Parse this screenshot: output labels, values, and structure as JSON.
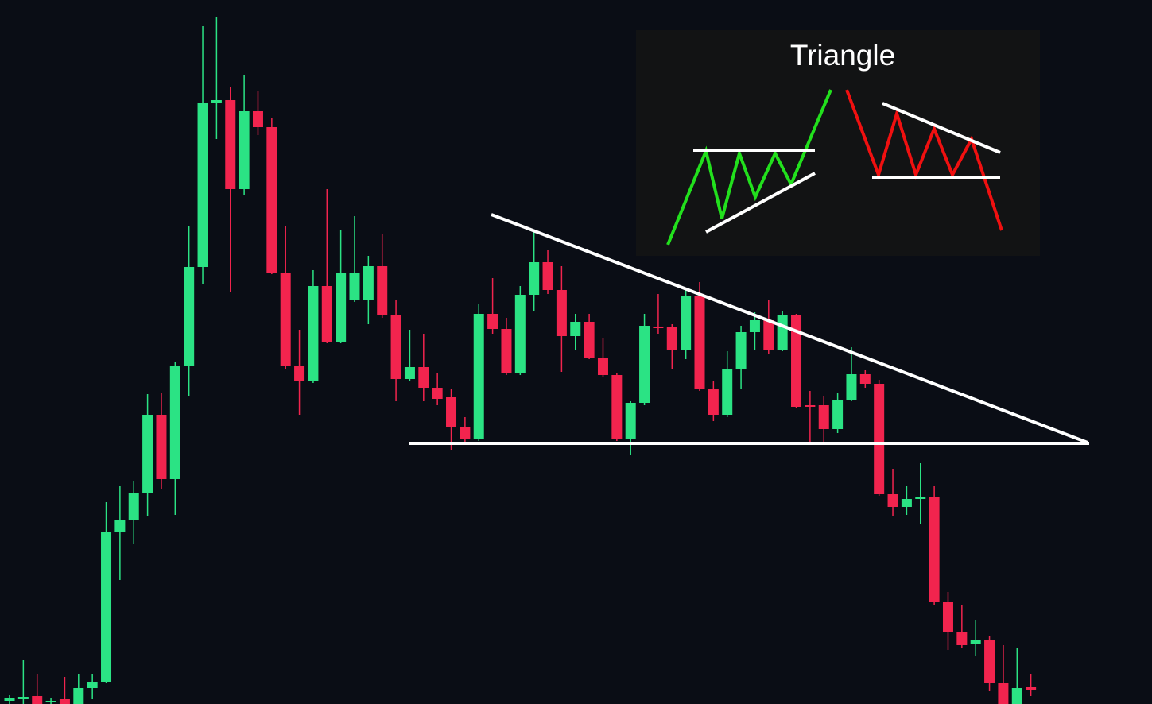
{
  "chart_data": {
    "type": "candlestick",
    "title": "Triangle",
    "up_color": "#2be384",
    "down_color": "#f2244e",
    "ylim": [
      0,
      886
    ],
    "series": [
      {
        "open": [
          4,
          6,
          10,
          3,
          6,
          0,
          20,
          28,
          216,
          231,
          265,
          364,
          283,
          426,
          550,
          756,
          760,
          648,
          746,
          726,
          542,
          426,
          406,
          526,
          456,
          508,
          508,
          551,
          489,
          409,
          424,
          398,
          386,
          349,
          334,
          491,
          472,
          416,
          515,
          556,
          521,
          463,
          481,
          436,
          414,
          333,
          379,
          475,
          474,
          446,
          514,
          396,
          364,
          421,
          468,
          483,
          446,
          489,
          376,
          376,
          346,
          383,
          415,
          403,
          264,
          248,
          258,
          261,
          128,
          91,
          76,
          80,
          26,
          0,
          21
        ],
        "high": [
          11,
          56,
          38,
          8,
          34,
          38,
          38,
          254,
          274,
          281,
          390,
          391,
          431,
          601,
          853,
          864,
          776,
          791,
          771,
          738,
          601,
          471,
          546,
          648,
          596,
          614,
          564,
          591,
          508,
          471,
          466,
          416,
          396,
          361,
          504,
          536,
          486,
          526,
          594,
          571,
          551,
          491,
          491,
          461,
          416,
          381,
          491,
          516,
          478,
          521,
          531,
          406,
          444,
          476,
          493,
          509,
          494,
          491,
          394,
          388,
          391,
          449,
          420,
          408,
          296,
          274,
          303,
          274,
          141,
          124,
          106,
          86,
          74,
          71,
          38
        ],
        "low": [
          0,
          0,
          0,
          0,
          0,
          0,
          6,
          26,
          156,
          201,
          236,
          271,
          238,
          388,
          528,
          711,
          518,
          641,
          716,
          541,
          421,
          364,
          404,
          454,
          454,
          506,
          478,
          486,
          381,
          406,
          381,
          376,
          320,
          326,
          331,
          466,
          414,
          414,
          494,
          516,
          418,
          446,
          434,
          411,
          331,
          314,
          376,
          466,
          421,
          434,
          394,
          356,
          361,
          396,
          446,
          441,
          444,
          372,
          328,
          330,
          341,
          381,
          398,
          262,
          236,
          238,
          226,
          124,
          68,
          70,
          60,
          16,
          0,
          0,
          10
        ],
        "close": [
          7,
          9,
          0,
          4,
          0,
          20,
          28,
          216,
          231,
          265,
          364,
          283,
          426,
          550,
          756,
          760,
          648,
          746,
          726,
          542,
          426,
          406,
          526,
          456,
          543,
          543,
          551,
          489,
          409,
          424,
          398,
          384,
          349,
          334,
          491,
          472,
          416,
          515,
          556,
          521,
          463,
          481,
          436,
          414,
          333,
          379,
          476,
          473,
          446,
          514,
          396,
          364,
          421,
          468,
          483,
          446,
          489,
          374,
          374,
          346,
          383,
          415,
          403,
          264,
          248,
          258,
          261,
          128,
          91,
          74,
          80,
          26,
          0,
          20,
          18
        ]
      }
    ]
  }
}
